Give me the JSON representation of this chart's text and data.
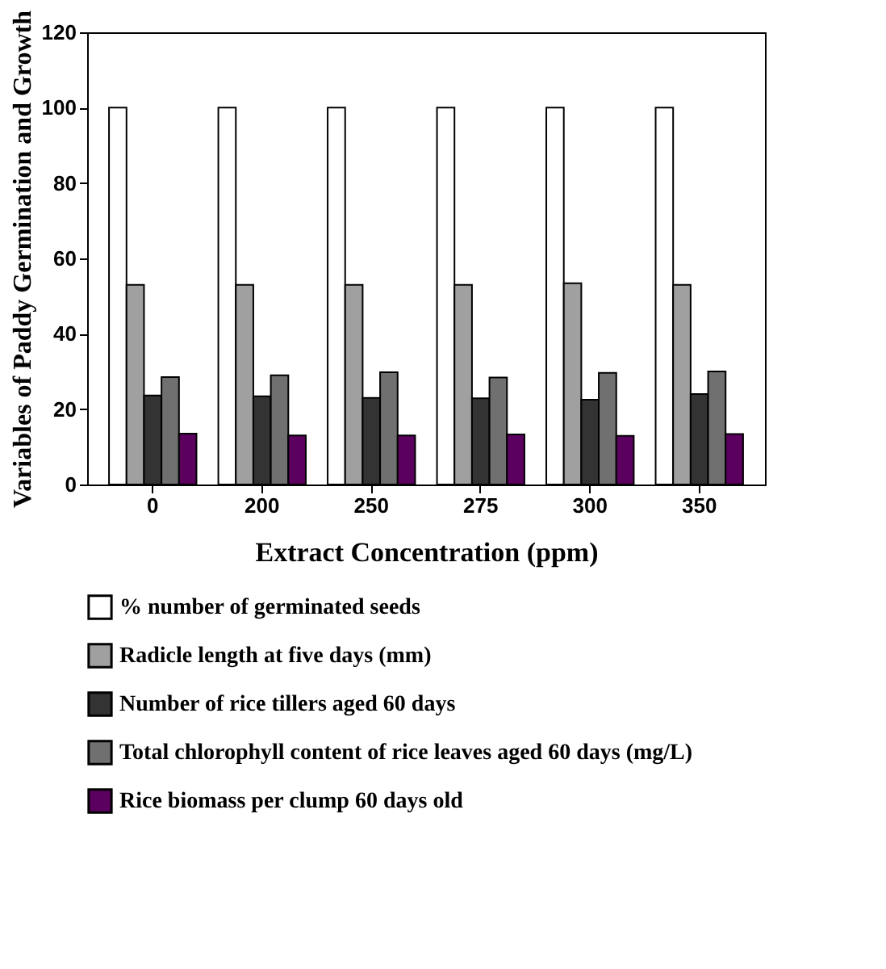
{
  "chart_data": {
    "type": "bar",
    "xlabel": "Extract Concentration (ppm)",
    "ylabel": "Variables of Paddy Germination and Growth",
    "categories": [
      "0",
      "200",
      "250",
      "275",
      "300",
      "350"
    ],
    "series": [
      {
        "name": "% number of germinated seeds",
        "color": "#ffffff",
        "values": [
          100,
          100,
          100,
          100,
          100,
          100
        ]
      },
      {
        "name": "Radicle length at five days (mm)",
        "color": "#a0a0a0",
        "values": [
          53,
          53,
          53,
          53,
          53.4,
          53
        ]
      },
      {
        "name": "Number of rice tillers aged 60 days",
        "color": "#333333",
        "values": [
          23.6,
          23.4,
          23,
          22.9,
          22.5,
          24
        ]
      },
      {
        "name": "Total chlorophyll content of rice leaves aged 60 days (mg/L)",
        "color": "#707070",
        "values": [
          28.5,
          29,
          29.8,
          28.4,
          29.6,
          30
        ]
      },
      {
        "name": "Rice biomass per clump 60 days old",
        "color": "#5c0060",
        "values": [
          13.5,
          13,
          13,
          13.3,
          12.9,
          13.4
        ]
      }
    ],
    "ylim": [
      0,
      120
    ],
    "yticks": [
      0,
      20,
      40,
      60,
      80,
      100,
      120
    ],
    "grid": false,
    "legend": "bottom"
  }
}
